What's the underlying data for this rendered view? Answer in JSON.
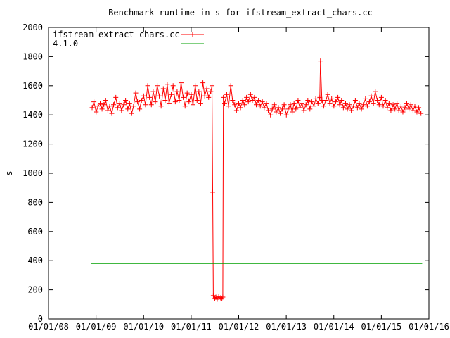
{
  "chart_data": {
    "type": "line",
    "title": "Benchmark runtime in s for ifstream_extract_chars.cc",
    "xlabel": "",
    "ylabel": "s",
    "xlim": [
      "2008-01-01",
      "2016-01-01"
    ],
    "ylim": [
      0,
      2000
    ],
    "x_ticks": [
      "01/01/08",
      "01/01/09",
      "01/01/10",
      "01/01/11",
      "01/01/12",
      "01/01/13",
      "01/01/14",
      "01/01/15",
      "01/01/16"
    ],
    "y_ticks": [
      0,
      200,
      400,
      600,
      800,
      1000,
      1200,
      1400,
      1600,
      1800,
      2000
    ],
    "legend_position": "top-left",
    "grid": false,
    "series": [
      {
        "name": "ifstream_extract_chars.cc",
        "color": "#ff0000",
        "marker": "plus",
        "points": [
          [
            "2008-12-01",
            1450
          ],
          [
            "2008-12-15",
            1490
          ],
          [
            "2009-01-01",
            1420
          ],
          [
            "2009-01-15",
            1460
          ],
          [
            "2009-02-01",
            1480
          ],
          [
            "2009-02-15",
            1440
          ],
          [
            "2009-03-01",
            1470
          ],
          [
            "2009-03-15",
            1500
          ],
          [
            "2009-04-01",
            1430
          ],
          [
            "2009-04-15",
            1460
          ],
          [
            "2009-05-01",
            1410
          ],
          [
            "2009-05-15",
            1470
          ],
          [
            "2009-06-01",
            1520
          ],
          [
            "2009-06-15",
            1450
          ],
          [
            "2009-07-01",
            1480
          ],
          [
            "2009-07-15",
            1430
          ],
          [
            "2009-08-01",
            1470
          ],
          [
            "2009-08-15",
            1500
          ],
          [
            "2009-09-01",
            1440
          ],
          [
            "2009-09-15",
            1480
          ],
          [
            "2009-10-01",
            1410
          ],
          [
            "2009-10-15",
            1460
          ],
          [
            "2009-11-01",
            1550
          ],
          [
            "2009-11-15",
            1490
          ],
          [
            "2009-12-01",
            1440
          ],
          [
            "2009-12-15",
            1500
          ],
          [
            "2010-01-01",
            1530
          ],
          [
            "2010-01-15",
            1470
          ],
          [
            "2010-02-01",
            1600
          ],
          [
            "2010-02-15",
            1520
          ],
          [
            "2010-03-01",
            1470
          ],
          [
            "2010-03-15",
            1560
          ],
          [
            "2010-04-01",
            1490
          ],
          [
            "2010-04-15",
            1600
          ],
          [
            "2010-05-01",
            1530
          ],
          [
            "2010-05-15",
            1460
          ],
          [
            "2010-06-01",
            1580
          ],
          [
            "2010-06-15",
            1500
          ],
          [
            "2010-07-01",
            1610
          ],
          [
            "2010-07-15",
            1480
          ],
          [
            "2010-08-01",
            1540
          ],
          [
            "2010-08-15",
            1600
          ],
          [
            "2010-09-01",
            1490
          ],
          [
            "2010-09-15",
            1560
          ],
          [
            "2010-10-01",
            1500
          ],
          [
            "2010-10-15",
            1620
          ],
          [
            "2010-11-01",
            1520
          ],
          [
            "2010-11-15",
            1460
          ],
          [
            "2010-12-01",
            1550
          ],
          [
            "2010-12-15",
            1490
          ],
          [
            "2011-01-01",
            1540
          ],
          [
            "2011-01-15",
            1470
          ],
          [
            "2011-02-01",
            1600
          ],
          [
            "2011-02-15",
            1500
          ],
          [
            "2011-03-01",
            1560
          ],
          [
            "2011-03-15",
            1480
          ],
          [
            "2011-04-01",
            1620
          ],
          [
            "2011-04-15",
            1530
          ],
          [
            "2011-05-01",
            1580
          ],
          [
            "2011-05-15",
            1520
          ],
          [
            "2011-06-01",
            1560
          ],
          [
            "2011-06-10",
            1600
          ],
          [
            "2011-06-15",
            870
          ],
          [
            "2011-06-20",
            160
          ],
          [
            "2011-07-01",
            140
          ],
          [
            "2011-07-10",
            150
          ],
          [
            "2011-07-20",
            135
          ],
          [
            "2011-08-01",
            155
          ],
          [
            "2011-08-15",
            145
          ],
          [
            "2011-08-25",
            140
          ],
          [
            "2011-09-01",
            150
          ],
          [
            "2011-09-05",
            1520
          ],
          [
            "2011-09-15",
            1480
          ],
          [
            "2011-10-01",
            1540
          ],
          [
            "2011-10-15",
            1460
          ],
          [
            "2011-11-01",
            1600
          ],
          [
            "2011-11-15",
            1500
          ],
          [
            "2011-12-01",
            1470
          ],
          [
            "2011-12-15",
            1430
          ],
          [
            "2012-01-01",
            1480
          ],
          [
            "2012-01-15",
            1450
          ],
          [
            "2012-02-01",
            1500
          ],
          [
            "2012-02-15",
            1470
          ],
          [
            "2012-03-01",
            1520
          ],
          [
            "2012-03-15",
            1490
          ],
          [
            "2012-04-01",
            1540
          ],
          [
            "2012-04-15",
            1500
          ],
          [
            "2012-05-01",
            1520
          ],
          [
            "2012-05-15",
            1470
          ],
          [
            "2012-06-01",
            1500
          ],
          [
            "2012-06-15",
            1460
          ],
          [
            "2012-07-01",
            1490
          ],
          [
            "2012-07-15",
            1450
          ],
          [
            "2012-08-01",
            1480
          ],
          [
            "2012-08-15",
            1430
          ],
          [
            "2012-09-01",
            1400
          ],
          [
            "2012-09-15",
            1440
          ],
          [
            "2012-10-01",
            1470
          ],
          [
            "2012-10-15",
            1420
          ],
          [
            "2012-11-01",
            1450
          ],
          [
            "2012-11-15",
            1410
          ],
          [
            "2012-12-01",
            1440
          ],
          [
            "2012-12-15",
            1470
          ],
          [
            "2013-01-01",
            1400
          ],
          [
            "2013-01-15",
            1440
          ],
          [
            "2013-02-01",
            1470
          ],
          [
            "2013-02-15",
            1420
          ],
          [
            "2013-03-01",
            1480
          ],
          [
            "2013-03-15",
            1440
          ],
          [
            "2013-04-01",
            1500
          ],
          [
            "2013-04-15",
            1450
          ],
          [
            "2013-05-01",
            1480
          ],
          [
            "2013-05-15",
            1430
          ],
          [
            "2013-06-01",
            1470
          ],
          [
            "2013-06-15",
            1500
          ],
          [
            "2013-07-01",
            1440
          ],
          [
            "2013-07-15",
            1490
          ],
          [
            "2013-08-01",
            1460
          ],
          [
            "2013-08-15",
            1510
          ],
          [
            "2013-09-01",
            1480
          ],
          [
            "2013-09-15",
            1520
          ],
          [
            "2013-09-20",
            1770
          ],
          [
            "2013-10-01",
            1500
          ],
          [
            "2013-10-15",
            1460
          ],
          [
            "2013-11-01",
            1500
          ],
          [
            "2013-11-15",
            1540
          ],
          [
            "2013-12-01",
            1480
          ],
          [
            "2013-12-15",
            1510
          ],
          [
            "2014-01-01",
            1460
          ],
          [
            "2014-01-15",
            1490
          ],
          [
            "2014-02-01",
            1520
          ],
          [
            "2014-02-15",
            1470
          ],
          [
            "2014-03-01",
            1500
          ],
          [
            "2014-03-15",
            1450
          ],
          [
            "2014-04-01",
            1480
          ],
          [
            "2014-04-15",
            1440
          ],
          [
            "2014-05-01",
            1470
          ],
          [
            "2014-05-15",
            1430
          ],
          [
            "2014-06-01",
            1460
          ],
          [
            "2014-06-15",
            1500
          ],
          [
            "2014-07-01",
            1450
          ],
          [
            "2014-07-15",
            1480
          ],
          [
            "2014-08-01",
            1440
          ],
          [
            "2014-08-15",
            1470
          ],
          [
            "2014-09-01",
            1510
          ],
          [
            "2014-09-15",
            1460
          ],
          [
            "2014-10-01",
            1490
          ],
          [
            "2014-10-15",
            1530
          ],
          [
            "2014-11-01",
            1480
          ],
          [
            "2014-11-15",
            1560
          ],
          [
            "2014-12-01",
            1500
          ],
          [
            "2014-12-15",
            1470
          ],
          [
            "2015-01-01",
            1520
          ],
          [
            "2015-01-15",
            1460
          ],
          [
            "2015-02-01",
            1500
          ],
          [
            "2015-02-15",
            1450
          ],
          [
            "2015-03-01",
            1480
          ],
          [
            "2015-03-15",
            1430
          ],
          [
            "2015-04-01",
            1470
          ],
          [
            "2015-04-15",
            1440
          ],
          [
            "2015-05-01",
            1480
          ],
          [
            "2015-05-15",
            1430
          ],
          [
            "2015-06-01",
            1460
          ],
          [
            "2015-06-15",
            1420
          ],
          [
            "2015-07-01",
            1450
          ],
          [
            "2015-07-15",
            1480
          ],
          [
            "2015-08-01",
            1440
          ],
          [
            "2015-08-15",
            1470
          ],
          [
            "2015-09-01",
            1430
          ],
          [
            "2015-09-15",
            1460
          ],
          [
            "2015-10-01",
            1420
          ],
          [
            "2015-10-15",
            1450
          ],
          [
            "2015-11-01",
            1410
          ]
        ]
      },
      {
        "name": "4.1.0",
        "color": "#00a000",
        "marker": "none",
        "points": [
          [
            "2008-11-20",
            380
          ],
          [
            "2015-11-10",
            380
          ]
        ]
      }
    ]
  }
}
